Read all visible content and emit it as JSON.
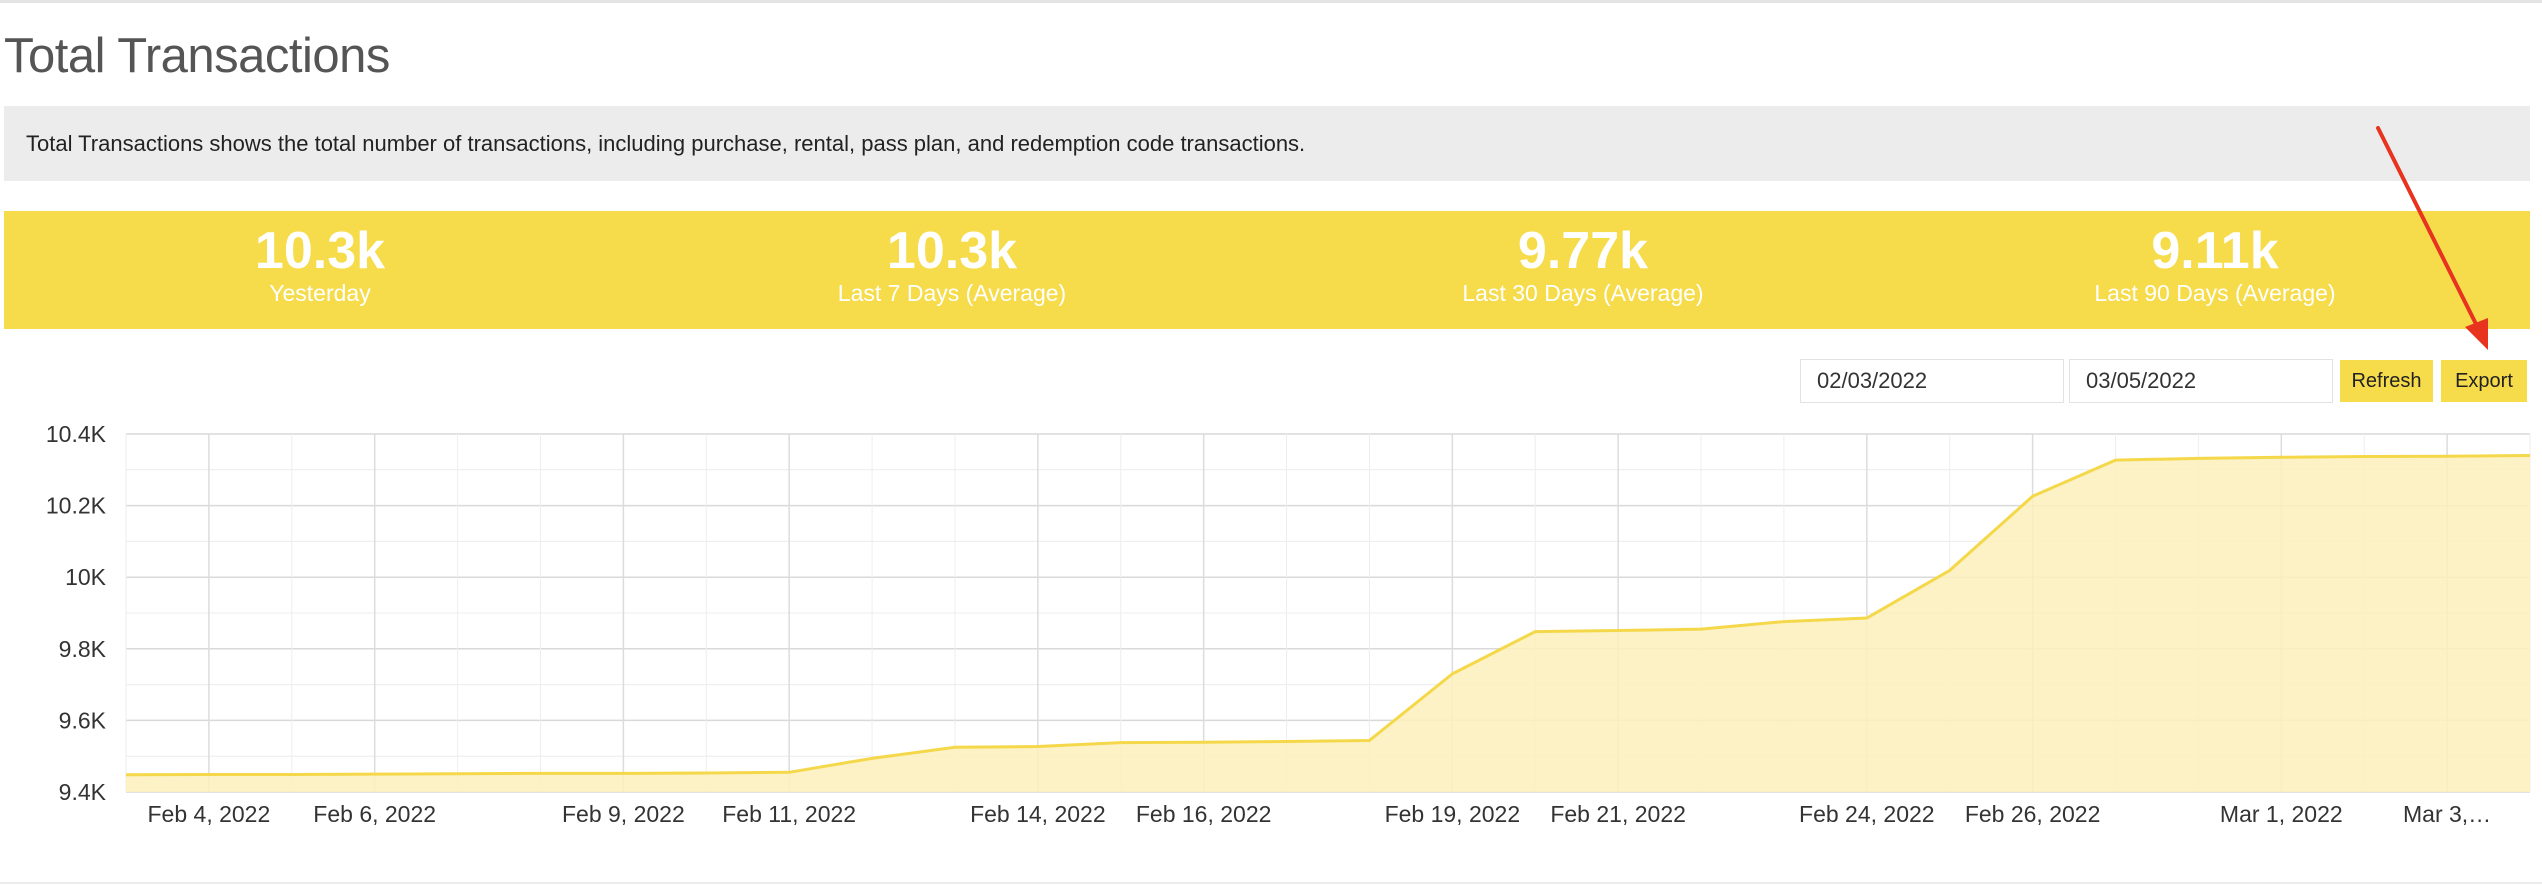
{
  "page": {
    "title": "Total Transactions",
    "description": "Total Transactions shows the total number of transactions, including purchase, rental, pass plan, and redemption code transactions."
  },
  "stats": [
    {
      "value": "10.3k",
      "label": "Yesterday"
    },
    {
      "value": "10.3k",
      "label": "Last 7 Days (Average)"
    },
    {
      "value": "9.77k",
      "label": "Last 30 Days (Average)"
    },
    {
      "value": "9.11k",
      "label": "Last 90 Days (Average)"
    }
  ],
  "controls": {
    "start_date": "02/03/2022",
    "end_date": "03/05/2022",
    "refresh_label": "Refresh",
    "export_label": "Export"
  },
  "colors": {
    "accent": "#f6dc4a",
    "line": "#f5d84a",
    "fill": "#fbf0bc",
    "annotation_arrow": "#e8331f"
  },
  "chart_data": {
    "type": "area",
    "title": "",
    "xlabel": "",
    "ylabel": "",
    "ylim": [
      9400,
      10400
    ],
    "yticks": [
      9400,
      9600,
      9800,
      10000,
      10200,
      10400
    ],
    "ytick_labels": [
      "9.4K",
      "9.6K",
      "9.8K",
      "10K",
      "10.2K",
      "10.4K"
    ],
    "xtick_labels": [
      "Feb 4, 2022",
      "Feb 6, 2022",
      "Feb 9, 2022",
      "Feb 11, 2022",
      "Feb 14, 2022",
      "Feb 16, 2022",
      "Feb 19, 2022",
      "Feb 21, 2022",
      "Feb 24, 2022",
      "Feb 26, 2022",
      "Mar 1, 2022",
      "Mar 3,…"
    ],
    "grid": true,
    "legend": "none",
    "x": [
      "Feb 3, 2022",
      "Feb 4, 2022",
      "Feb 5, 2022",
      "Feb 6, 2022",
      "Feb 7, 2022",
      "Feb 8, 2022",
      "Feb 9, 2022",
      "Feb 10, 2022",
      "Feb 11, 2022",
      "Feb 12, 2022",
      "Feb 13, 2022",
      "Feb 14, 2022",
      "Feb 15, 2022",
      "Feb 16, 2022",
      "Feb 17, 2022",
      "Feb 18, 2022",
      "Feb 19, 2022",
      "Feb 20, 2022",
      "Feb 21, 2022",
      "Feb 22, 2022",
      "Feb 23, 2022",
      "Feb 24, 2022",
      "Feb 25, 2022",
      "Feb 26, 2022",
      "Feb 27, 2022",
      "Feb 28, 2022",
      "Mar 1, 2022",
      "Mar 2, 2022",
      "Mar 3, 2022",
      "Mar 4, 2022"
    ],
    "series": [
      {
        "values": [
          9448,
          9449,
          9449,
          9450,
          9451,
          9452,
          9452,
          9453,
          9455,
          9494,
          9525,
          9527,
          9538,
          9539,
          9541,
          9544,
          9730,
          9848,
          9851,
          9855,
          9876,
          9886,
          10019,
          10226,
          10327,
          10332,
          10335,
          10337,
          10338,
          10340
        ]
      }
    ]
  }
}
